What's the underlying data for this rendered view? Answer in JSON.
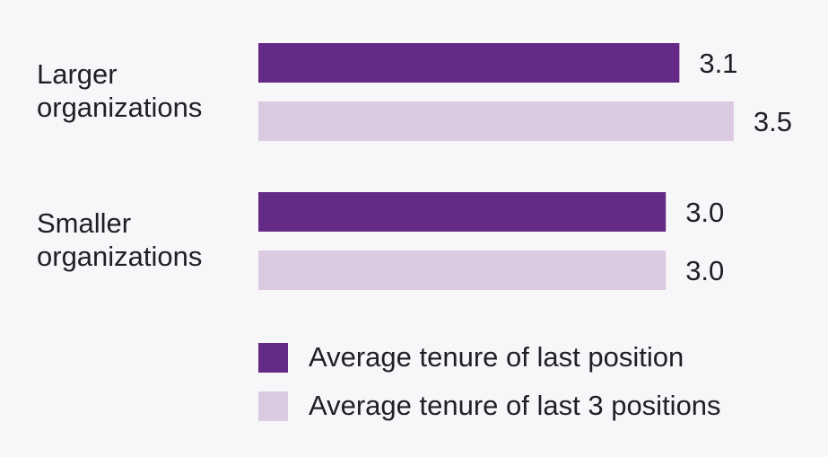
{
  "chart_data": {
    "type": "bar",
    "orientation": "horizontal",
    "categories": [
      "Larger\norganizations",
      "Smaller\norganizations"
    ],
    "series": [
      {
        "name": "Average tenure of last position",
        "color": "#652a85",
        "values": [
          3.1,
          3.0
        ],
        "value_labels": [
          "3.1",
          "3.0"
        ]
      },
      {
        "name": "Average tenure of last 3 positions",
        "color": "#dccae3",
        "values": [
          3.5,
          3.0
        ],
        "value_labels": [
          "3.5",
          "3.0"
        ]
      }
    ],
    "xlim": [
      0,
      3.5
    ],
    "grid": false,
    "legend_position": "bottom"
  }
}
